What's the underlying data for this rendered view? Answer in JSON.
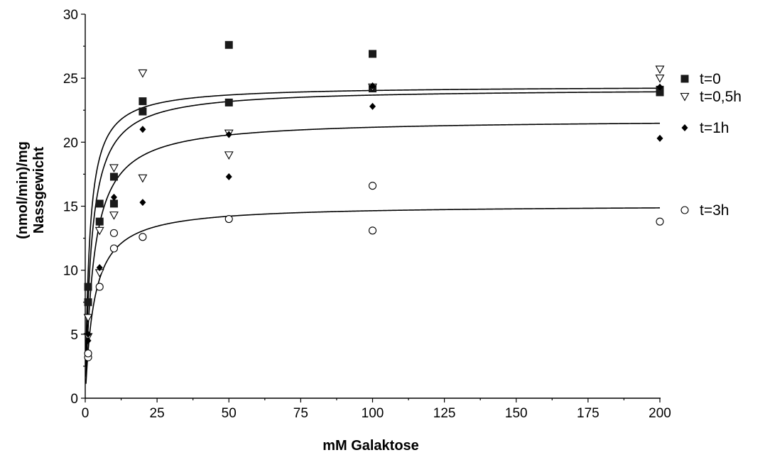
{
  "chart_data": {
    "type": "scatter",
    "title": "",
    "xlabel": "mM Galaktose",
    "ylabel_lines": [
      "(nmol/min)/mg",
      "Nassgewicht"
    ],
    "xlim": [
      0,
      200
    ],
    "ylim": [
      0,
      30
    ],
    "x_ticks": [
      0,
      25,
      50,
      75,
      100,
      125,
      150,
      175,
      200
    ],
    "y_ticks": [
      0,
      5,
      10,
      15,
      20,
      25,
      30
    ],
    "x_tick_labels": [
      "0",
      "25",
      "50",
      "75",
      "100",
      "125",
      "150",
      "175",
      "200"
    ],
    "y_tick_labels": [
      "0",
      "5",
      "10",
      "15",
      "20",
      "25",
      "30"
    ],
    "grid": false,
    "legend_position": "right",
    "series": [
      {
        "name": "t=0",
        "marker": "filled-square",
        "points": [
          [
            1,
            7.5
          ],
          [
            1,
            8.7
          ],
          [
            5,
            13.8
          ],
          [
            5,
            15.2
          ],
          [
            10,
            15.2
          ],
          [
            10,
            17.3
          ],
          [
            20,
            22.4
          ],
          [
            20,
            23.2
          ],
          [
            50,
            23.1
          ],
          [
            50,
            27.6
          ],
          [
            100,
            24.2
          ],
          [
            100,
            26.9
          ],
          [
            200,
            23.9
          ],
          [
            200,
            24.1
          ]
        ],
        "fit": {
          "vmax": 24.4,
          "km": 1.5
        }
      },
      {
        "name": "t=0,5h",
        "marker": "open-triangle-down",
        "points": [
          [
            1,
            4.8
          ],
          [
            1,
            6.3
          ],
          [
            5,
            9.8
          ],
          [
            5,
            13.1
          ],
          [
            10,
            14.3
          ],
          [
            10,
            18.0
          ],
          [
            20,
            17.2
          ],
          [
            20,
            25.4
          ],
          [
            50,
            19.0
          ],
          [
            50,
            20.7
          ],
          [
            100,
            24.3
          ],
          [
            200,
            25.0
          ],
          [
            200,
            25.7
          ]
        ],
        "fit": {
          "vmax": 24.2,
          "km": 2.2
        }
      },
      {
        "name": "t=1h",
        "marker": "filled-diamond",
        "points": [
          [
            1,
            4.5
          ],
          [
            1,
            5.0
          ],
          [
            5,
            10.2
          ],
          [
            10,
            15.7
          ],
          [
            20,
            15.3
          ],
          [
            20,
            21.0
          ],
          [
            50,
            17.3
          ],
          [
            50,
            20.6
          ],
          [
            100,
            22.8
          ],
          [
            100,
            24.4
          ],
          [
            200,
            20.3
          ],
          [
            200,
            24.3
          ]
        ],
        "fit": {
          "vmax": 21.8,
          "km": 3.0
        }
      },
      {
        "name": "t=3h",
        "marker": "open-circle",
        "points": [
          [
            1,
            3.2
          ],
          [
            1,
            3.5
          ],
          [
            5,
            8.7
          ],
          [
            10,
            11.7
          ],
          [
            10,
            12.9
          ],
          [
            20,
            12.6
          ],
          [
            50,
            14.0
          ],
          [
            100,
            13.1
          ],
          [
            100,
            16.6
          ],
          [
            200,
            13.8
          ]
        ],
        "fit": {
          "vmax": 15.1,
          "km": 3.1
        }
      }
    ]
  }
}
